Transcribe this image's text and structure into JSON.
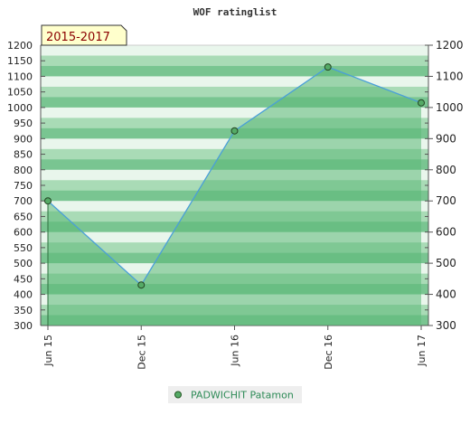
{
  "chart_data": {
    "type": "area",
    "title": "WOF ratinglist",
    "period_label": "2015-2017",
    "categories": [
      "Jun 15",
      "Dec 15",
      "Jun 16",
      "Dec 16",
      "Jun 17"
    ],
    "series": [
      {
        "name": "PADWICHIT Patamon",
        "values": [
          700,
          430,
          925,
          1130,
          1015
        ]
      }
    ],
    "ylim": [
      300,
      1200
    ],
    "y_ticks_left": [
      300,
      350,
      400,
      450,
      500,
      550,
      600,
      650,
      700,
      750,
      800,
      850,
      900,
      950,
      1000,
      1050,
      1100,
      1150,
      1200
    ],
    "y_ticks_right": [
      300,
      400,
      500,
      600,
      700,
      800,
      900,
      1000,
      1100,
      1200
    ],
    "legend_position": "bottom-center",
    "grid": false,
    "colors": {
      "line": "#4a9fd8",
      "area": "#5cb878",
      "marker": "#55aa66",
      "band_light": "#e9f6ec",
      "band_mid": "#a9dbb6",
      "band_dark": "#79c591",
      "period_box": "#ffffcc",
      "legend_bg": "#eeeeee",
      "legend_text": "#2e8b57"
    }
  }
}
